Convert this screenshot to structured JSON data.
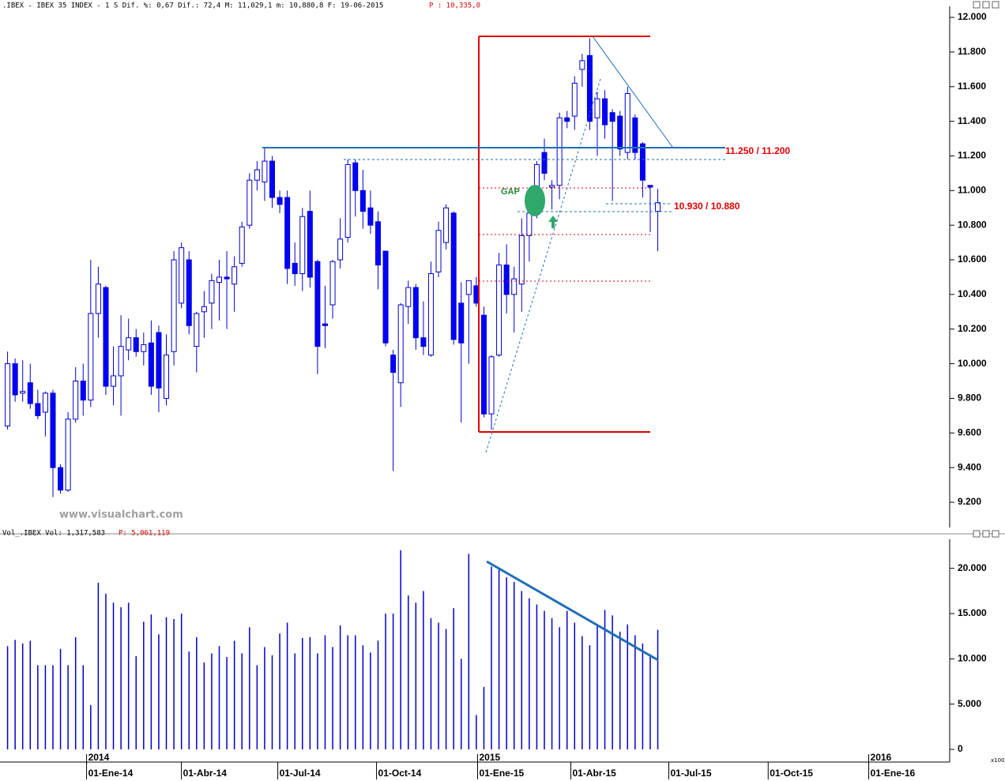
{
  "chart_data": [
    {
      "type": "candlestick",
      "title": ".IBEX - IBEX 35 INDEX -  1 S Dif. %: 0,67 Dif.: 72,4 M: 11,029,1 m: 10,880,8 F: 19-06-2015",
      "subtitle": "P : 10,335,0",
      "watermark": "www.visualchart.com",
      "annotations": [
        "11.250 / 11.200",
        "10.930 / 10.880",
        "GAP"
      ],
      "categories": [
        null,
        null,
        null,
        null,
        null,
        null,
        null,
        null,
        null,
        null,
        null,
        null,
        null,
        null,
        null,
        null,
        null,
        null,
        null,
        null,
        null,
        null,
        null,
        null,
        null,
        null,
        null,
        null,
        null,
        null,
        null,
        null,
        null,
        null,
        null,
        null,
        null,
        null,
        null,
        null,
        null,
        null,
        null,
        null,
        null,
        null,
        null,
        null,
        null,
        null,
        null,
        null,
        null,
        null,
        null,
        null,
        null,
        null,
        null,
        null,
        null,
        null,
        null,
        null,
        null,
        null,
        null,
        null,
        null,
        null,
        null,
        null,
        null,
        null,
        null,
        null,
        null,
        null,
        null,
        null,
        null,
        null,
        null,
        null,
        null,
        null,
        null
      ],
      "open": [
        9640,
        10000,
        9830,
        9890,
        9770,
        9720,
        9830,
        9400,
        9270,
        9680,
        9900,
        9790,
        10290,
        10440,
        9870,
        9930,
        10080,
        10150,
        10070,
        10120,
        10180,
        9800,
        10070,
        10350,
        10600,
        10100,
        10300,
        10350,
        10470,
        10500,
        10460,
        10580,
        10800,
        11060,
        11050,
        11170,
        10960,
        10960,
        10580,
        10520,
        10880,
        10590,
        10230,
        10340,
        10600,
        10730,
        11160,
        11000,
        10900,
        10820,
        10650,
        10050,
        9890,
        10330,
        10440,
        10150,
        10050,
        10530,
        10700,
        10870,
        10350,
        10400,
        10450,
        10280,
        9710,
        10050,
        10570,
        10400,
        10460,
        10740,
        10870,
        11220,
        11020,
        11030,
        11420,
        11430,
        11700,
        11780,
        11420,
        11530,
        11450,
        11430,
        11220,
        11420,
        11270,
        11030,
        10880
      ],
      "high": [
        10070,
        10030,
        10020,
        10000,
        9850,
        9840,
        9850,
        9420,
        9720,
        9980,
        10000,
        10600,
        10560,
        10450,
        10100,
        10280,
        10260,
        10200,
        10180,
        10250,
        10220,
        10170,
        10650,
        10700,
        10650,
        10300,
        10420,
        10520,
        10600,
        10650,
        10620,
        10820,
        11100,
        11170,
        11250,
        11200,
        11000,
        11000,
        10700,
        10900,
        11000,
        10600,
        10450,
        10600,
        10840,
        11180,
        11180,
        11120,
        11000,
        10880,
        10650,
        10080,
        10350,
        10480,
        10460,
        10360,
        10590,
        10820,
        10920,
        10880,
        10470,
        10480,
        10500,
        10330,
        10050,
        10640,
        10690,
        10560,
        10840,
        10920,
        11170,
        11300,
        11060,
        11450,
        11460,
        11660,
        11790,
        11880,
        11570,
        11580,
        11470,
        11460,
        11600,
        11440,
        11280,
        11030,
        11010
      ],
      "low": [
        9620,
        9780,
        9780,
        9740,
        9680,
        9580,
        9230,
        9250,
        9260,
        9660,
        9700,
        9750,
        10150,
        9820,
        9760,
        9700,
        10020,
        10040,
        9990,
        9820,
        9720,
        9760,
        9990,
        10320,
        10170,
        9950,
        10150,
        10200,
        10250,
        10200,
        10300,
        10560,
        10780,
        11000,
        10940,
        10900,
        10870,
        10460,
        10450,
        10420,
        10440,
        9940,
        10090,
        10260,
        10550,
        10700,
        10850,
        10780,
        10750,
        10430,
        10100,
        9380,
        9750,
        10230,
        10080,
        10050,
        10040,
        10500,
        10660,
        10110,
        9660,
        10000,
        10330,
        9690,
        9620,
        10040,
        10290,
        10180,
        10300,
        10590,
        10840,
        11060,
        10890,
        10950,
        11360,
        11350,
        11600,
        11350,
        11200,
        11300,
        10940,
        11200,
        11180,
        11180,
        10960,
        10760,
        10650
      ],
      "close": [
        10000,
        9820,
        9840,
        9770,
        9700,
        9830,
        9400,
        9270,
        9680,
        9900,
        9790,
        10290,
        10460,
        9870,
        9930,
        10100,
        10150,
        10070,
        10110,
        9870,
        9860,
        10050,
        10600,
        10670,
        10220,
        10290,
        10330,
        10480,
        10500,
        10490,
        10560,
        10790,
        11060,
        11120,
        11170,
        10960,
        10920,
        10550,
        10520,
        10850,
        10500,
        10100,
        10220,
        10590,
        10720,
        11150,
        11000,
        10880,
        10800,
        10570,
        10120,
        9950,
        10340,
        10440,
        10150,
        10100,
        10520,
        10770,
        10900,
        10140,
        10120,
        10480,
        10350,
        9710,
        10040,
        10570,
        10400,
        10490,
        10740,
        10870,
        11150,
        11100,
        11030,
        11420,
        11400,
        11620,
        11750,
        11400,
        11530,
        11380,
        11400,
        11240,
        11560,
        11220,
        11060,
        11020,
        10930
      ],
      "color": "#0000cc",
      "up_color": "#ffffff",
      "down_color": "#0000ff",
      "xlim": [
        -1,
        124.4
      ],
      "ylim": [
        9054,
        12055
      ],
      "yticks": [
        {
          "value": 9200,
          "label": "9.200"
        },
        {
          "value": 9400,
          "label": "9.400"
        },
        {
          "value": 9600,
          "label": "9.600"
        },
        {
          "value": 9800,
          "label": "9.800"
        },
        {
          "value": 10000,
          "label": "10.000"
        },
        {
          "value": 10200,
          "label": "10.200"
        },
        {
          "value": 10400,
          "label": "10.400"
        },
        {
          "value": 10600,
          "label": "10.600"
        },
        {
          "value": 10800,
          "label": "10.800"
        },
        {
          "value": 11000,
          "label": "11.000"
        },
        {
          "value": 11200,
          "label": "11.200"
        },
        {
          "value": 11400,
          "label": "11.400"
        },
        {
          "value": 11600,
          "label": "11.600"
        },
        {
          "value": 11800,
          "label": "11.800"
        },
        {
          "value": 12000,
          "label": "12.000"
        }
      ],
      "grid": false
    },
    {
      "type": "bar",
      "title": "Vol_.IBEX Vol: 1,317,583",
      "subtitle": "P: 5,061,119",
      "scale_note": "x100",
      "categories": [
        null,
        null,
        null,
        null,
        null,
        null,
        null,
        null,
        null,
        null,
        null,
        null,
        null,
        null,
        null,
        null,
        null,
        null,
        null,
        null,
        null,
        null,
        null,
        null,
        null,
        null,
        null,
        null,
        null,
        null,
        null,
        null,
        null,
        null,
        null,
        null,
        null,
        null,
        null,
        null,
        null,
        null,
        null,
        null,
        null,
        null,
        null,
        null,
        null,
        null,
        null,
        null,
        null,
        null,
        null,
        null,
        null,
        null,
        null,
        null,
        null,
        null,
        null,
        null,
        null,
        null,
        null,
        null,
        null,
        null,
        null,
        null,
        null,
        null,
        null,
        null,
        null,
        null,
        null,
        null,
        null,
        null,
        null,
        null,
        null,
        null,
        null
      ],
      "values": [
        11400,
        12100,
        11700,
        12000,
        9300,
        9300,
        9300,
        11100,
        9300,
        12400,
        9300,
        4900,
        18400,
        17200,
        16200,
        15700,
        16200,
        10300,
        14100,
        14900,
        12700,
        14600,
        14400,
        15000,
        10800,
        12400,
        9600,
        10600,
        11400,
        10200,
        12000,
        10600,
        13500,
        9300,
        11300,
        10400,
        12800,
        14000,
        10600,
        12300,
        12400,
        10600,
        12600,
        11300,
        13700,
        12600,
        12600,
        11500,
        10700,
        12000,
        15000,
        15000,
        22000,
        17000,
        16200,
        17500,
        14500,
        14000,
        13300,
        15600,
        10000,
        21600,
        3800,
        6900,
        20200,
        20000,
        19000,
        18500,
        17500,
        16700,
        16000,
        15300,
        14500,
        13500,
        15300,
        14000,
        12500,
        11500,
        13800,
        15400,
        14800,
        13000,
        13800,
        12600,
        11700,
        10500,
        13200
      ],
      "color": "#0000cc",
      "xlim": [
        -1,
        124.4
      ],
      "ylim": [
        -1400,
        23200
      ],
      "yticks": [
        0,
        {
          "value": 5000,
          "label": "5.000"
        },
        {
          "value": 10000,
          "label": "10.000"
        },
        {
          "value": 15000,
          "label": "15.000"
        },
        {
          "value": 20000,
          "label": "20.000"
        }
      ],
      "xticks": [
        {
          "value": 10.45,
          "label": "01-Ene-14"
        },
        {
          "value": 22.99,
          "label": "01-Abr-14"
        },
        {
          "value": 35.74,
          "label": "01-Jul-14"
        },
        {
          "value": 48.8,
          "label": "01-Oct-14"
        },
        {
          "value": 62.17,
          "label": "01-Ene-15"
        },
        {
          "value": 74.5,
          "label": "01-Abr-15"
        },
        {
          "value": 87.46,
          "label": "01-Jul-15"
        },
        {
          "value": 100.6,
          "label": "01-Oct-15"
        },
        {
          "value": 113.9,
          "label": "01-Ene-16"
        }
      ],
      "year_ticks": [
        {
          "value": 10.45,
          "label": "2014"
        },
        {
          "value": 62.17,
          "label": "2015"
        },
        {
          "value": 113.9,
          "label": "2016"
        }
      ],
      "grid": false
    }
  ]
}
